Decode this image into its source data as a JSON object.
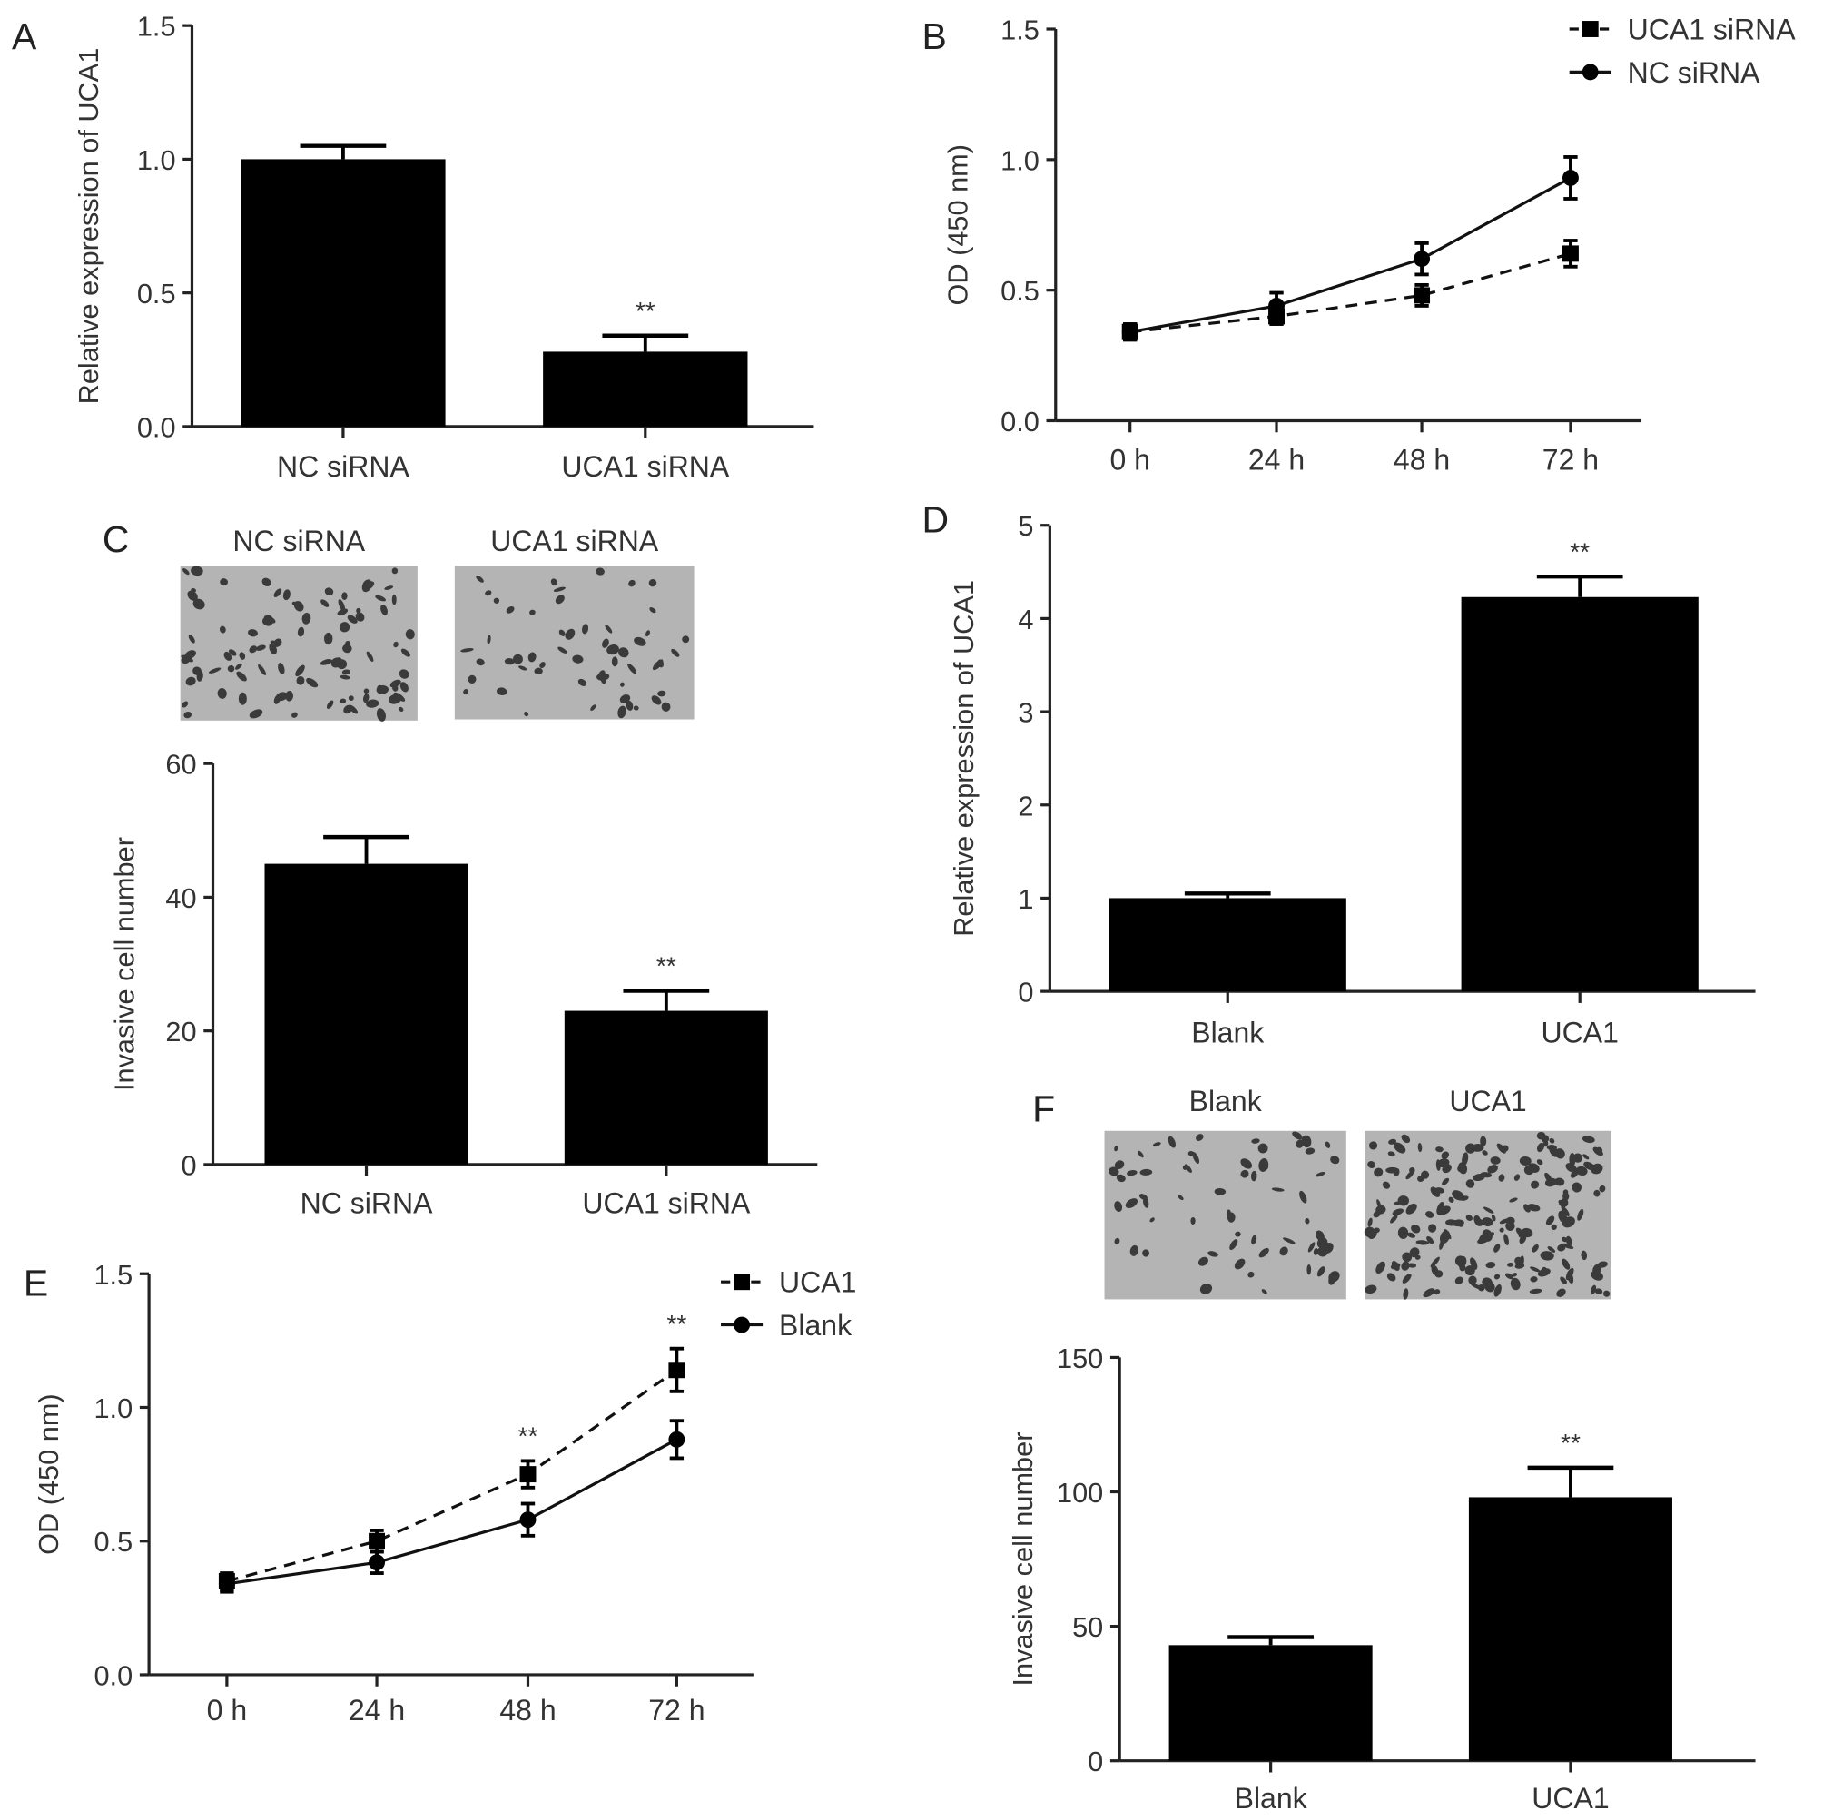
{
  "chart_data": [
    {
      "panel": "A",
      "type": "bar",
      "categories": [
        "NC siRNA",
        "UCA1 siRNA"
      ],
      "values": [
        1.0,
        0.28
      ],
      "errors": [
        0.05,
        0.06
      ],
      "significance": [
        "",
        "**"
      ],
      "ylabel": "Relative expression of UCA1",
      "xlabel": "",
      "ylim": [
        0,
        1.5
      ],
      "yticks": [
        "0.0",
        "0.5",
        "1.0",
        "1.5"
      ],
      "ytick_values": [
        0,
        0.5,
        1.0,
        1.5
      ]
    },
    {
      "panel": "B",
      "type": "line",
      "categories": [
        "0 h",
        "24 h",
        "48 h",
        "72 h"
      ],
      "series": [
        {
          "name": "UCA1 siRNA",
          "marker": "square",
          "style": "dashed",
          "values": [
            0.34,
            0.4,
            0.48,
            0.64
          ],
          "errors": [
            0.03,
            0.03,
            0.04,
            0.05
          ]
        },
        {
          "name": "NC siRNA",
          "marker": "circle",
          "style": "solid",
          "values": [
            0.34,
            0.44,
            0.62,
            0.93
          ],
          "errors": [
            0.03,
            0.05,
            0.06,
            0.08
          ]
        }
      ],
      "significance": [
        "",
        "",
        "",
        ""
      ],
      "ylabel": "OD (450 nm)",
      "xlabel": "",
      "ylim": [
        0,
        1.5
      ],
      "yticks": [
        "0.0",
        "0.5",
        "1.0",
        "1.5"
      ],
      "ytick_values": [
        0,
        0.5,
        1.0,
        1.5
      ],
      "legend": "top-right"
    },
    {
      "panel": "C",
      "type": "bar",
      "image_labels": [
        "NC siRNA",
        "UCA1 siRNA"
      ],
      "image_density": [
        0.45,
        0.25
      ],
      "categories": [
        "NC siRNA",
        "UCA1 siRNA"
      ],
      "values": [
        45,
        23
      ],
      "errors": [
        4,
        3
      ],
      "significance": [
        "",
        "**"
      ],
      "ylabel": "Invasive cell number",
      "xlabel": "",
      "ylim": [
        0,
        60
      ],
      "yticks": [
        "0",
        "20",
        "40",
        "60"
      ],
      "ytick_values": [
        0,
        20,
        40,
        60
      ]
    },
    {
      "panel": "D",
      "type": "bar",
      "categories": [
        "Blank",
        "UCA1"
      ],
      "values": [
        1.0,
        4.23
      ],
      "errors": [
        0.05,
        0.22
      ],
      "significance": [
        "",
        "**"
      ],
      "ylabel": "Relative expression of UCA1",
      "xlabel": "",
      "ylim": [
        0,
        5
      ],
      "yticks": [
        "0",
        "1",
        "2",
        "3",
        "4",
        "5"
      ],
      "ytick_values": [
        0,
        1,
        2,
        3,
        4,
        5
      ]
    },
    {
      "panel": "E",
      "type": "line",
      "categories": [
        "0 h",
        "24 h",
        "48 h",
        "72 h"
      ],
      "series": [
        {
          "name": "UCA1",
          "marker": "square",
          "style": "dashed",
          "values": [
            0.35,
            0.5,
            0.75,
            1.14
          ],
          "errors": [
            0.03,
            0.04,
            0.05,
            0.08
          ]
        },
        {
          "name": "Blank",
          "marker": "circle",
          "style": "solid",
          "values": [
            0.34,
            0.42,
            0.58,
            0.88
          ],
          "errors": [
            0.03,
            0.04,
            0.06,
            0.07
          ]
        }
      ],
      "significance": [
        "",
        "",
        "**",
        "**"
      ],
      "ylabel": "OD (450 nm)",
      "xlabel": "",
      "ylim": [
        0,
        1.5
      ],
      "yticks": [
        "0.0",
        "0.5",
        "1.0",
        "1.5"
      ],
      "ytick_values": [
        0,
        0.5,
        1.0,
        1.5
      ],
      "legend": "top-right"
    },
    {
      "panel": "F",
      "type": "bar",
      "image_labels": [
        "Blank",
        "UCA1"
      ],
      "image_density": [
        0.3,
        0.9
      ],
      "categories": [
        "Blank",
        "UCA1"
      ],
      "values": [
        43,
        98
      ],
      "errors": [
        3,
        11
      ],
      "significance": [
        "",
        "**"
      ],
      "ylabel": "Invasive cell number",
      "xlabel": "",
      "ylim": [
        0,
        150
      ],
      "yticks": [
        "0",
        "50",
        "100",
        "150"
      ],
      "ytick_values": [
        0,
        50,
        100,
        150
      ]
    }
  ]
}
